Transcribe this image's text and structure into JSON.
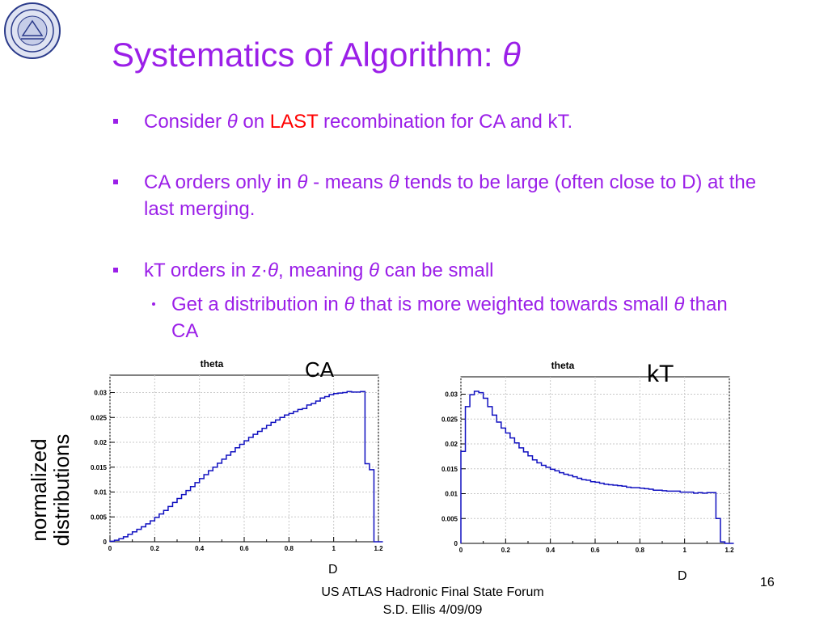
{
  "slide": {
    "title_prefix": "Systematics of Algorithm: ",
    "title_symbol": "θ",
    "page_number": "16",
    "footer_line1": "US ATLAS Hadronic Final State Forum",
    "footer_line2": "S.D. Ellis 4/09/09",
    "y_axis_label_line1": "normalized",
    "y_axis_label_line2": "distributions"
  },
  "bullets": {
    "b1": {
      "t1": "Consider ",
      "t2": "θ",
      "t3": " on ",
      "t4": "LAST",
      "t5": " recombination for CA and kT."
    },
    "b2": {
      "t1": "CA orders only in ",
      "t2": "θ",
      "t3": " - means ",
      "t4": "θ",
      "t5": " tends to be large (often close to D) at the last merging."
    },
    "b3": {
      "t1": "kT orders in z·",
      "t2": "θ",
      "t3": ", meaning ",
      "t4": "θ",
      "t5": " can be small"
    },
    "b4": {
      "t1": "Get a distribution in ",
      "t2": "θ",
      "t3": " that is more weighted towards small ",
      "t4": "θ",
      "t5": " than CA"
    }
  },
  "colors": {
    "text": "#9b1fe8",
    "highlight": "#ff0000",
    "histogram": "#1010c0",
    "grid": "#c8c8c8"
  },
  "chart_data": [
    {
      "type": "histogram",
      "title": "theta",
      "caption": "CA",
      "marker_label": "D",
      "xlim": [
        0,
        1.2
      ],
      "ylim": [
        0,
        0.0335
      ],
      "x_ticks": [
        "0",
        "0.2",
        "0.4",
        "0.6",
        "0.8",
        "1",
        "1.2"
      ],
      "y_ticks": [
        "0",
        "0.005",
        "0.01",
        "0.015",
        "0.02",
        "0.025",
        "0.03"
      ],
      "grid": true,
      "bin_width": 0.02,
      "values": [
        0.0001,
        0.0003,
        0.0006,
        0.001,
        0.0015,
        0.002,
        0.0025,
        0.003,
        0.0036,
        0.0042,
        0.0049,
        0.0056,
        0.0063,
        0.0071,
        0.0079,
        0.0087,
        0.0095,
        0.0103,
        0.0111,
        0.0119,
        0.0127,
        0.0135,
        0.0143,
        0.015,
        0.0158,
        0.0166,
        0.0174,
        0.0181,
        0.0189,
        0.0196,
        0.0203,
        0.021,
        0.0216,
        0.0222,
        0.0228,
        0.0234,
        0.024,
        0.0245,
        0.025,
        0.0255,
        0.0258,
        0.0262,
        0.0266,
        0.0268,
        0.0275,
        0.0278,
        0.0283,
        0.0289,
        0.0292,
        0.0296,
        0.0298,
        0.0299,
        0.03,
        0.0302,
        0.0301,
        0.0301,
        0.0302,
        0.0157,
        0.0145,
        0.0,
        0.0
      ]
    },
    {
      "type": "histogram",
      "title": "theta",
      "caption": "kT",
      "marker_label": "D",
      "xlim": [
        0,
        1.2
      ],
      "ylim": [
        0,
        0.0335
      ],
      "x_ticks": [
        "0",
        "0.2",
        "0.4",
        "0.6",
        "0.8",
        "1",
        "1.2"
      ],
      "y_ticks": [
        "0",
        "0.005",
        "0.01",
        "0.015",
        "0.02",
        "0.025",
        "0.03"
      ],
      "grid": true,
      "bin_width": 0.02,
      "values": [
        0.0185,
        0.0275,
        0.0299,
        0.0306,
        0.0303,
        0.0292,
        0.0275,
        0.0258,
        0.0244,
        0.0232,
        0.0222,
        0.0212,
        0.0202,
        0.0192,
        0.0184,
        0.0176,
        0.0168,
        0.0162,
        0.0157,
        0.0153,
        0.0149,
        0.0146,
        0.0142,
        0.0139,
        0.0137,
        0.0134,
        0.0131,
        0.0128,
        0.0127,
        0.0124,
        0.0123,
        0.0121,
        0.0119,
        0.0118,
        0.0117,
        0.0116,
        0.0115,
        0.0113,
        0.0112,
        0.0112,
        0.0111,
        0.011,
        0.0109,
        0.0107,
        0.0107,
        0.0106,
        0.0105,
        0.0105,
        0.0105,
        0.0103,
        0.0103,
        0.0103,
        0.0101,
        0.0102,
        0.0101,
        0.0102,
        0.0102,
        0.005,
        0.0003,
        0.0,
        0.0
      ]
    }
  ]
}
